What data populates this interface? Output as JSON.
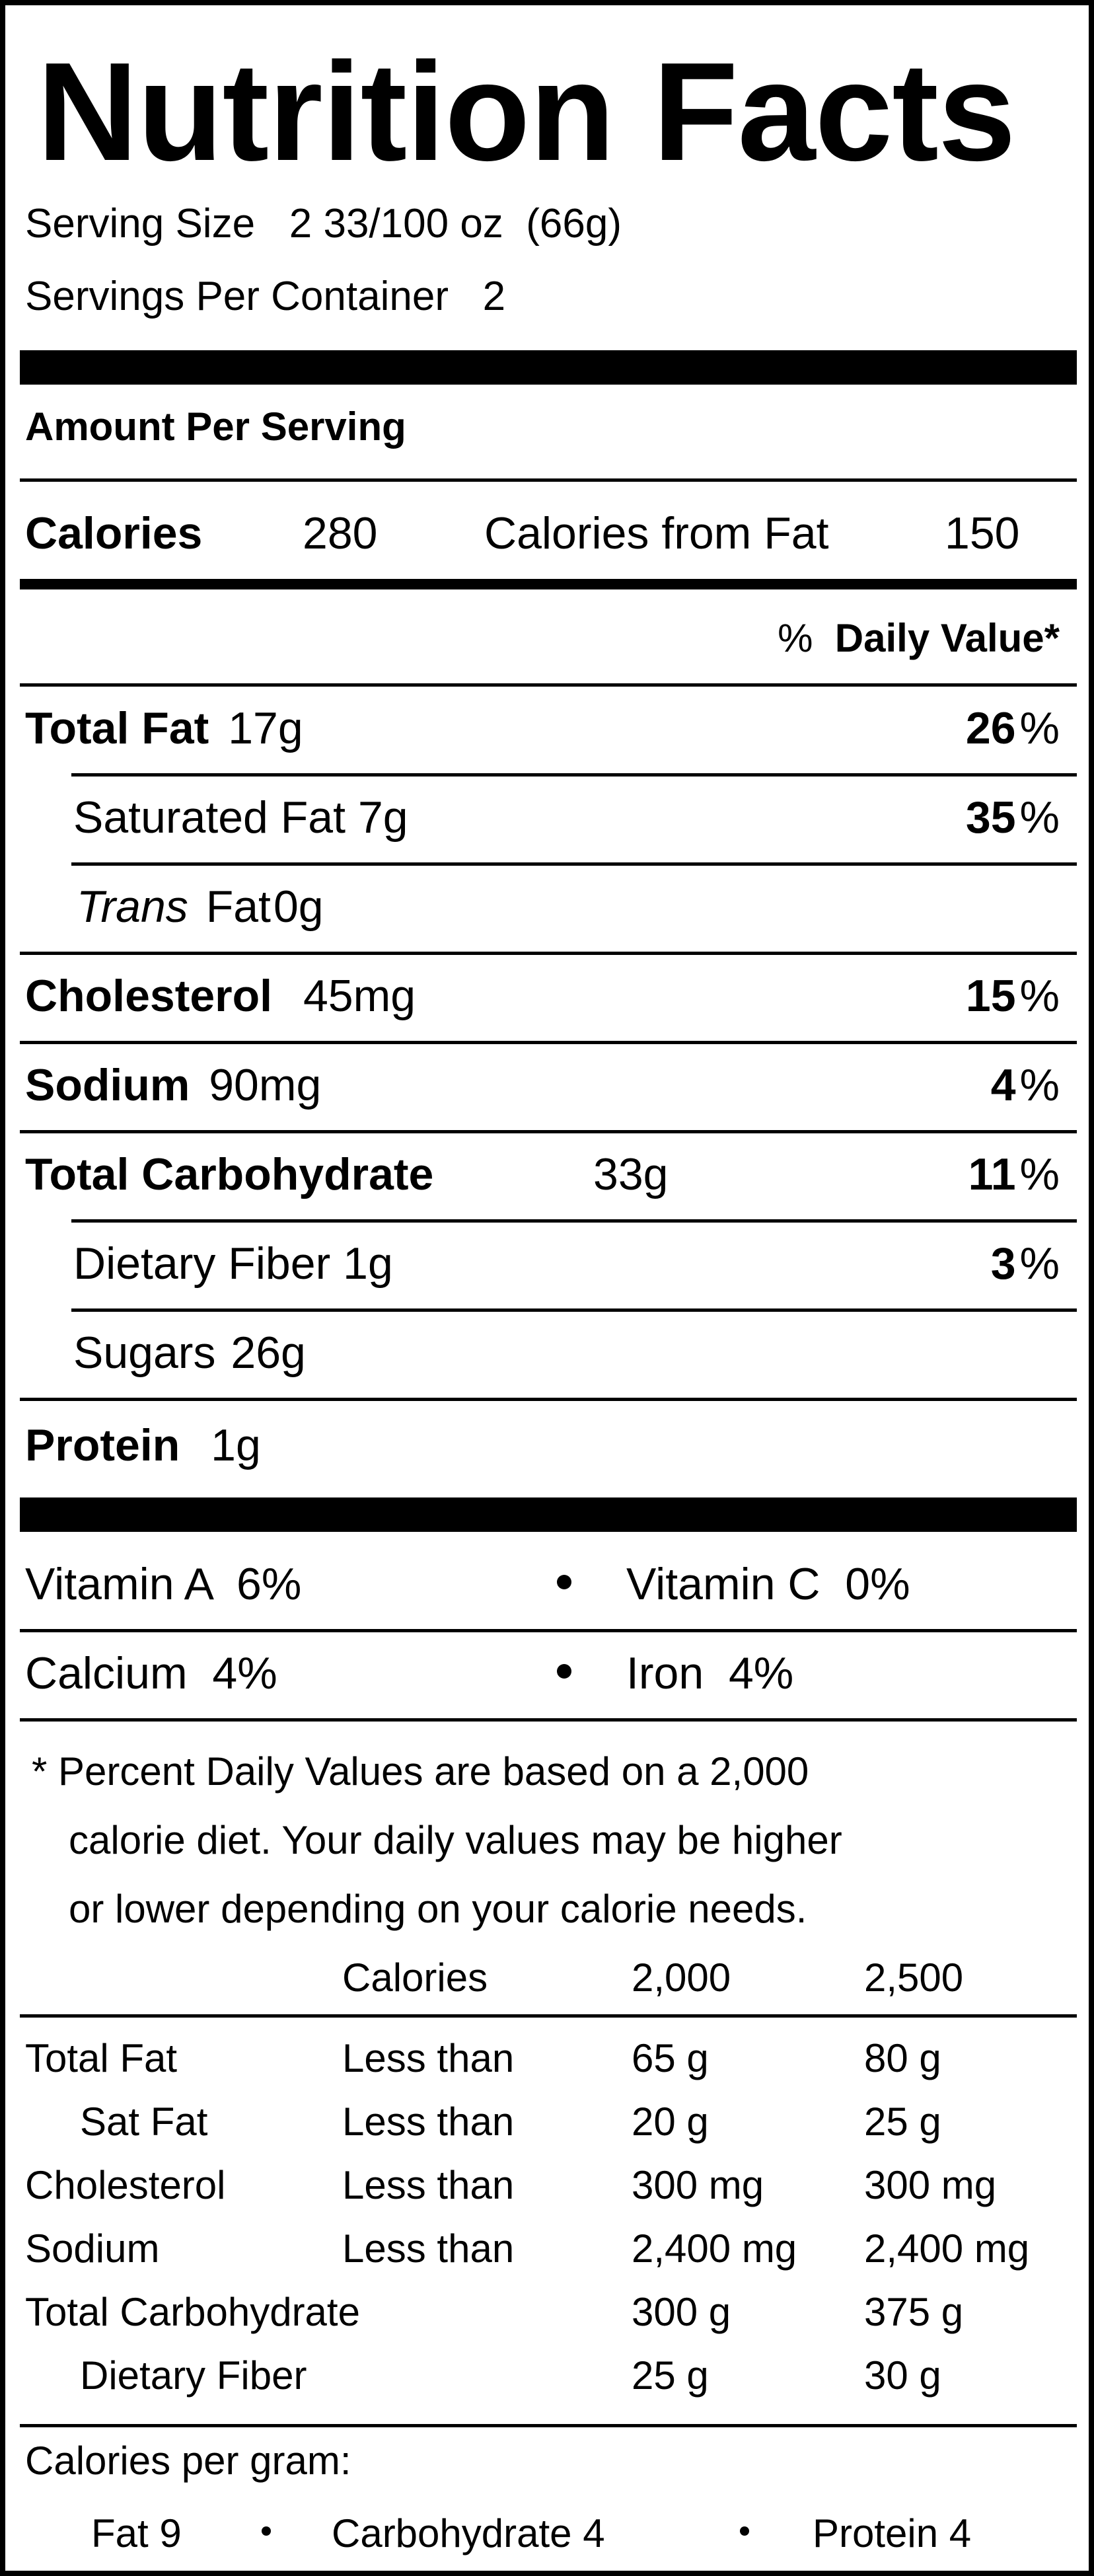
{
  "title": "Nutrition Facts",
  "serving_size_label": "Serving Size",
  "serving_size_value": "2 33/100 oz  (66g)",
  "servings_per_container_label": "Servings Per Container",
  "servings_per_container_value": "2",
  "amount_per_serving": "Amount Per Serving",
  "calories_label": "Calories",
  "calories_value": "280",
  "calories_from_fat_label": "Calories from Fat",
  "calories_from_fat_value": "150",
  "dv_percent_sign": "%",
  "dv_header": "Daily Value*",
  "nutrients": {
    "total_fat": {
      "label": "Total Fat",
      "amount": "17g",
      "dv": "26",
      "pct": "%"
    },
    "saturated_fat": {
      "label": "Saturated Fat",
      "amount": "7g",
      "dv": "35",
      "pct": "%"
    },
    "trans_fat": {
      "label_italic": "Trans",
      "label": "Fat",
      "amount": "0g"
    },
    "cholesterol": {
      "label": "Cholesterol",
      "amount": "45mg",
      "dv": "15",
      "pct": "%"
    },
    "sodium": {
      "label": "Sodium",
      "amount": "90mg",
      "dv": "4",
      "pct": "%"
    },
    "total_carbohydrate": {
      "label": "Total Carbohydrate",
      "amount": "33g",
      "dv": "11",
      "pct": "%"
    },
    "dietary_fiber": {
      "label": "Dietary Fiber",
      "amount": "1g",
      "dv": "3",
      "pct": "%"
    },
    "sugars": {
      "label": "Sugars",
      "amount": "26g"
    },
    "protein": {
      "label": "Protein",
      "amount": "1g"
    }
  },
  "vitamins": {
    "vitamin_a": "Vitamin A  6%",
    "vitamin_c": "Vitamin C  0%",
    "calcium": "Calcium  4%",
    "iron": "Iron  4%"
  },
  "footnote": {
    "line1": "* Percent Daily Values are based on a 2,000",
    "line2": "calorie diet. Your daily values may be higher",
    "line3": "or lower depending on your calorie needs."
  },
  "reference_table": {
    "header": {
      "calories": "Calories",
      "col1": "2,000",
      "col2": "2,500"
    },
    "rows": [
      {
        "name": "Total Fat",
        "qualifier": "Less than",
        "v1": "65 g",
        "v2": "80 g"
      },
      {
        "name": "Sat Fat",
        "qualifier": "Less than",
        "v1": "20 g",
        "v2": "25 g"
      },
      {
        "name": "Cholesterol",
        "qualifier": "Less than",
        "v1": "300 mg",
        "v2": "300 mg"
      },
      {
        "name": "Sodium",
        "qualifier": "Less than",
        "v1": "2,400 mg",
        "v2": "2,400 mg"
      },
      {
        "name": "Total Carbohydrate",
        "qualifier": "",
        "v1": "300 g",
        "v2": "375 g"
      },
      {
        "name": "Dietary Fiber",
        "qualifier": "",
        "v1": "25 g",
        "v2": "30 g"
      }
    ]
  },
  "calories_per_gram": {
    "label": "Calories per gram:",
    "fat": "Fat 9",
    "carbohydrate": "Carbohydrate 4",
    "protein": "Protein 4"
  }
}
